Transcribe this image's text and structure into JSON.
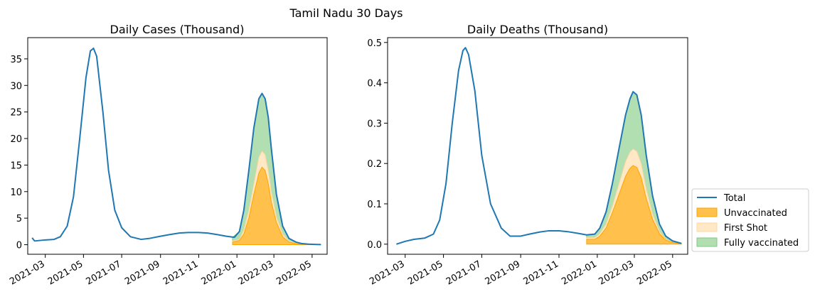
{
  "suptitle": "Tamil Nadu 30 Days",
  "legend": {
    "placement": "right, outside panels, lower",
    "entries": [
      {
        "label": "Total",
        "kind": "line",
        "color": "#1f77b4"
      },
      {
        "label": "Unvaccinated",
        "kind": "fill",
        "color": "#ffa500"
      },
      {
        "label": "First Shot",
        "kind": "fill",
        "color": "#ffd9a0"
      },
      {
        "label": "Fully vaccinated",
        "kind": "fill",
        "color": "#7fc97f"
      }
    ]
  },
  "chart_data": [
    {
      "type": "area",
      "title": "Daily Cases (Thousand)",
      "xlabel": "",
      "ylabel": "",
      "xlim": [
        "2021-02-01",
        "2022-05-25"
      ],
      "ylim": [
        -1.8,
        39
      ],
      "yticks": [
        0,
        5,
        10,
        15,
        20,
        25,
        30,
        35
      ],
      "xticks": [
        "2021-03",
        "2021-05",
        "2021-07",
        "2021-09",
        "2021-11",
        "2022-01",
        "2022-03",
        "2022-05"
      ],
      "grid": false,
      "series": [
        {
          "name": "Total",
          "type": "line",
          "color": "#1f77b4",
          "x": [
            "2021-02-08",
            "2021-02-12",
            "2021-03-01",
            "2021-03-15",
            "2021-03-25",
            "2021-04-05",
            "2021-04-15",
            "2021-04-25",
            "2021-05-05",
            "2021-05-12",
            "2021-05-17",
            "2021-05-22",
            "2021-06-01",
            "2021-06-10",
            "2021-06-20",
            "2021-07-01",
            "2021-07-15",
            "2021-08-01",
            "2021-08-15",
            "2021-09-01",
            "2021-09-15",
            "2021-10-01",
            "2021-10-15",
            "2021-11-01",
            "2021-11-15",
            "2021-12-01",
            "2021-12-15",
            "2021-12-28",
            "2022-01-05",
            "2022-01-12",
            "2022-01-20",
            "2022-01-28",
            "2022-02-05",
            "2022-02-10",
            "2022-02-15",
            "2022-02-20",
            "2022-02-25",
            "2022-03-05",
            "2022-03-15",
            "2022-03-25",
            "2022-04-05",
            "2022-04-15",
            "2022-04-25",
            "2022-05-05",
            "2022-05-15"
          ],
          "values": [
            1.3,
            0.7,
            0.9,
            1.0,
            1.5,
            3.5,
            9.0,
            20.0,
            31.5,
            36.5,
            37.0,
            35.5,
            25.0,
            14.0,
            6.5,
            3.2,
            1.5,
            1.0,
            1.2,
            1.6,
            1.9,
            2.2,
            2.3,
            2.3,
            2.2,
            1.9,
            1.6,
            1.4,
            2.5,
            6.5,
            14.0,
            22.0,
            27.5,
            28.5,
            27.5,
            24.0,
            18.0,
            9.5,
            3.5,
            1.2,
            0.5,
            0.2,
            0.1,
            0.05,
            0.02
          ]
        },
        {
          "name": "Unvaccinated",
          "type": "area",
          "color": "#ffa500",
          "x": [
            "2021-12-25",
            "2022-01-05",
            "2022-01-12",
            "2022-01-20",
            "2022-01-28",
            "2022-02-05",
            "2022-02-10",
            "2022-02-15",
            "2022-02-20",
            "2022-02-25",
            "2022-03-05",
            "2022-03-15",
            "2022-03-25",
            "2022-04-05",
            "2022-04-15",
            "2022-04-25",
            "2022-05-05",
            "2022-05-15"
          ],
          "values": [
            0.5,
            0.8,
            2.0,
            5.0,
            9.5,
            13.5,
            14.6,
            14.0,
            11.5,
            8.0,
            4.2,
            1.5,
            0.5,
            0.2,
            0.1,
            0.05,
            0.02,
            0.01
          ]
        },
        {
          "name": "First Shot",
          "type": "area",
          "color": "#ffd9a0",
          "x": [
            "2021-12-25",
            "2022-01-05",
            "2022-01-12",
            "2022-01-20",
            "2022-01-28",
            "2022-02-05",
            "2022-02-10",
            "2022-02-15",
            "2022-02-20",
            "2022-02-25",
            "2022-03-05",
            "2022-03-15",
            "2022-03-25",
            "2022-04-05",
            "2022-04-15",
            "2022-04-25",
            "2022-05-05",
            "2022-05-15"
          ],
          "values": [
            0.7,
            1.0,
            2.8,
            6.5,
            11.5,
            16.5,
            17.6,
            17.0,
            14.0,
            10.0,
            5.3,
            2.0,
            0.7,
            0.3,
            0.1,
            0.06,
            0.03,
            0.01
          ]
        },
        {
          "name": "Fully vaccinated",
          "type": "area",
          "color": "#7fc97f",
          "x": [
            "2021-12-25",
            "2022-01-05",
            "2022-01-12",
            "2022-01-20",
            "2022-01-28",
            "2022-02-05",
            "2022-02-10",
            "2022-02-15",
            "2022-02-20",
            "2022-02-25",
            "2022-03-05",
            "2022-03-15",
            "2022-03-25",
            "2022-04-05",
            "2022-04-15",
            "2022-04-25",
            "2022-05-05",
            "2022-05-15"
          ],
          "values": [
            1.4,
            2.5,
            6.5,
            14.0,
            22.0,
            27.5,
            28.5,
            27.5,
            24.0,
            18.0,
            9.5,
            3.5,
            1.2,
            0.5,
            0.2,
            0.1,
            0.05,
            0.02
          ]
        }
      ]
    },
    {
      "type": "area",
      "title": "Daily Deaths (Thousand)",
      "xlabel": "",
      "ylabel": "",
      "xlim": [
        "2021-02-01",
        "2022-05-25"
      ],
      "ylim": [
        -0.025,
        0.512
      ],
      "yticks": [
        0.0,
        0.1,
        0.2,
        0.3,
        0.4,
        0.5
      ],
      "ytick_labels": [
        "0.0",
        "0.1",
        "0.2",
        "0.3",
        "0.4",
        "0.5"
      ],
      "xticks": [
        "2021-03",
        "2021-05",
        "2021-07",
        "2021-09",
        "2021-11",
        "2022-01",
        "2022-03",
        "2022-05"
      ],
      "grid": false,
      "series": [
        {
          "name": "Total",
          "type": "line",
          "color": "#1f77b4",
          "x": [
            "2021-02-15",
            "2021-03-01",
            "2021-03-15",
            "2021-04-01",
            "2021-04-15",
            "2021-04-25",
            "2021-05-05",
            "2021-05-15",
            "2021-05-25",
            "2021-06-01",
            "2021-06-05",
            "2021-06-10",
            "2021-06-20",
            "2021-07-01",
            "2021-07-15",
            "2021-08-01",
            "2021-08-15",
            "2021-09-01",
            "2021-09-15",
            "2021-10-01",
            "2021-10-15",
            "2021-11-01",
            "2021-11-15",
            "2021-12-01",
            "2021-12-15",
            "2021-12-28",
            "2022-01-05",
            "2022-01-15",
            "2022-01-25",
            "2022-02-05",
            "2022-02-15",
            "2022-02-22",
            "2022-02-27",
            "2022-03-05",
            "2022-03-12",
            "2022-03-20",
            "2022-03-30",
            "2022-04-10",
            "2022-04-20",
            "2022-05-01",
            "2022-05-15"
          ],
          "values": [
            0.0,
            0.007,
            0.012,
            0.015,
            0.025,
            0.06,
            0.15,
            0.3,
            0.43,
            0.48,
            0.487,
            0.47,
            0.38,
            0.22,
            0.1,
            0.04,
            0.02,
            0.02,
            0.025,
            0.03,
            0.033,
            0.033,
            0.031,
            0.027,
            0.023,
            0.025,
            0.04,
            0.08,
            0.15,
            0.24,
            0.32,
            0.36,
            0.378,
            0.37,
            0.32,
            0.22,
            0.12,
            0.05,
            0.02,
            0.008,
            0.002
          ]
        },
        {
          "name": "Unvaccinated",
          "type": "area",
          "color": "#ffa500",
          "x": [
            "2021-12-15",
            "2021-12-28",
            "2022-01-05",
            "2022-01-15",
            "2022-01-25",
            "2022-02-05",
            "2022-02-15",
            "2022-02-22",
            "2022-02-27",
            "2022-03-05",
            "2022-03-12",
            "2022-03-20",
            "2022-03-30",
            "2022-04-10",
            "2022-04-20",
            "2022-05-01",
            "2022-05-15"
          ],
          "values": [
            0.012,
            0.012,
            0.02,
            0.04,
            0.078,
            0.125,
            0.168,
            0.188,
            0.195,
            0.19,
            0.165,
            0.113,
            0.062,
            0.026,
            0.01,
            0.004,
            0.001
          ]
        },
        {
          "name": "First Shot",
          "type": "area",
          "color": "#ffd9a0",
          "x": [
            "2021-12-15",
            "2021-12-28",
            "2022-01-05",
            "2022-01-15",
            "2022-01-25",
            "2022-02-05",
            "2022-02-15",
            "2022-02-22",
            "2022-02-27",
            "2022-03-05",
            "2022-03-12",
            "2022-03-20",
            "2022-03-30",
            "2022-04-10",
            "2022-04-20",
            "2022-05-01",
            "2022-05-15"
          ],
          "values": [
            0.016,
            0.016,
            0.026,
            0.05,
            0.095,
            0.152,
            0.205,
            0.228,
            0.236,
            0.23,
            0.2,
            0.137,
            0.075,
            0.031,
            0.012,
            0.005,
            0.001
          ]
        },
        {
          "name": "Fully vaccinated",
          "type": "area",
          "color": "#7fc97f",
          "x": [
            "2021-12-15",
            "2021-12-28",
            "2022-01-05",
            "2022-01-15",
            "2022-01-25",
            "2022-02-05",
            "2022-02-15",
            "2022-02-22",
            "2022-02-27",
            "2022-03-05",
            "2022-03-12",
            "2022-03-20",
            "2022-03-30",
            "2022-04-10",
            "2022-04-20",
            "2022-05-01",
            "2022-05-15"
          ],
          "values": [
            0.023,
            0.025,
            0.04,
            0.08,
            0.15,
            0.24,
            0.32,
            0.36,
            0.378,
            0.37,
            0.32,
            0.22,
            0.12,
            0.05,
            0.02,
            0.008,
            0.002
          ]
        }
      ]
    }
  ]
}
